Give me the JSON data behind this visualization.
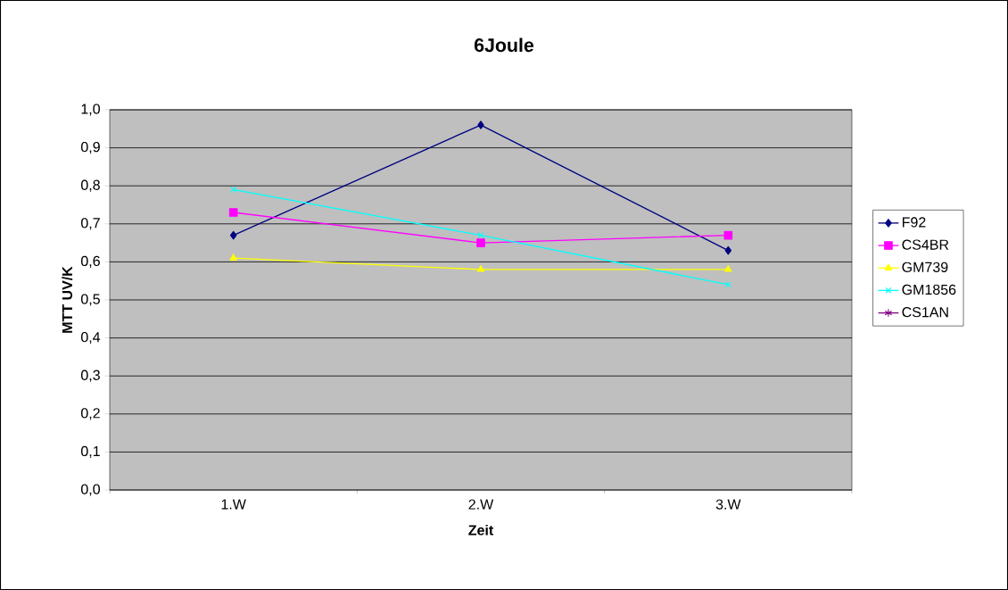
{
  "chart_data": {
    "type": "line",
    "title": "6Joule",
    "xlabel": "Zeit",
    "ylabel": "MTT UV/K",
    "categories": [
      "1.W",
      "2.W",
      "3.W"
    ],
    "series": [
      {
        "name": "F92",
        "color": "#000080",
        "marker": "diamond",
        "values": [
          0.67,
          0.96,
          0.63
        ]
      },
      {
        "name": "CS4BR",
        "color": "#ff00ff",
        "marker": "square",
        "values": [
          0.73,
          0.65,
          0.67
        ]
      },
      {
        "name": "GM739",
        "color": "#ffff00",
        "marker": "triangle",
        "values": [
          0.61,
          0.58,
          0.58
        ]
      },
      {
        "name": "GM1856",
        "color": "#00ffff",
        "marker": "cross",
        "values": [
          0.79,
          0.67,
          0.54
        ]
      },
      {
        "name": "CS1AN",
        "color": "#800080",
        "marker": "star",
        "values": [
          null,
          null,
          null
        ]
      }
    ],
    "ylim": [
      0,
      1
    ],
    "yticks": [
      {
        "value": 0,
        "label": "0,0"
      },
      {
        "value": 0.1,
        "label": "0,1"
      },
      {
        "value": 0.2,
        "label": "0,2"
      },
      {
        "value": 0.3,
        "label": "0,3"
      },
      {
        "value": 0.4,
        "label": "0,4"
      },
      {
        "value": 0.5,
        "label": "0,5"
      },
      {
        "value": 0.6,
        "label": "0,6"
      },
      {
        "value": 0.7,
        "label": "0,7"
      },
      {
        "value": 0.8,
        "label": "0,8"
      },
      {
        "value": 0.9,
        "label": "0,9"
      },
      {
        "value": 1,
        "label": "1,0"
      }
    ],
    "grid": "y",
    "legend": "right"
  }
}
